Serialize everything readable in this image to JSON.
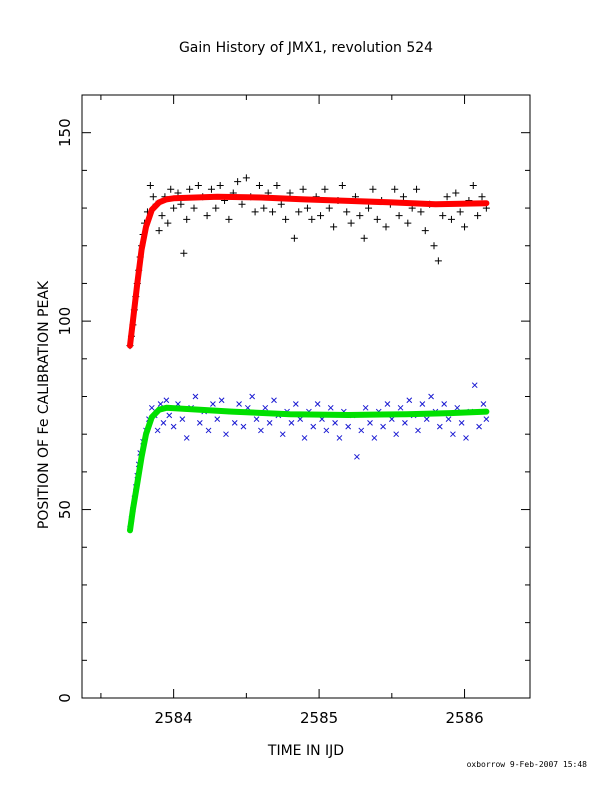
{
  "chart_data": {
    "type": "scatter",
    "title": "Gain History of JMX1, revolution 524",
    "xlabel": "TIME IN IJD",
    "ylabel": "POSITION OF Fe CALIBRATION PEAK",
    "xlim": [
      2583.37,
      2586.45
    ],
    "ylim": [
      0,
      160
    ],
    "xticks": [
      2584,
      2585,
      2586
    ],
    "yticks": [
      0,
      50,
      100,
      150
    ],
    "xtick_labels": [
      "2584",
      "2585",
      "2586"
    ],
    "ytick_labels": [
      "0",
      "50",
      "100",
      "150"
    ],
    "grid": false,
    "legend": "none",
    "series": [
      {
        "marker": "+",
        "color": "#000000",
        "points": [
          [
            2583.7,
            93.5
          ],
          [
            2583.71,
            96
          ],
          [
            2583.72,
            99
          ],
          [
            2583.73,
            103
          ],
          [
            2583.74,
            106.5
          ],
          [
            2583.75,
            110
          ],
          [
            2583.76,
            113.5
          ],
          [
            2583.77,
            117
          ],
          [
            2583.78,
            120
          ],
          [
            2583.79,
            123
          ],
          [
            2583.8,
            126
          ],
          [
            2583.82,
            129
          ],
          [
            2583.84,
            136
          ],
          [
            2583.86,
            133
          ],
          [
            2583.88,
            131
          ],
          [
            2583.9,
            124
          ],
          [
            2583.92,
            128
          ],
          [
            2583.94,
            133
          ],
          [
            2583.96,
            126
          ],
          [
            2583.98,
            135
          ],
          [
            2584.0,
            130
          ],
          [
            2584.03,
            134
          ],
          [
            2584.05,
            131
          ],
          [
            2584.07,
            118
          ],
          [
            2584.09,
            127
          ],
          [
            2584.11,
            135
          ],
          [
            2584.14,
            130
          ],
          [
            2584.17,
            136
          ],
          [
            2584.2,
            133
          ],
          [
            2584.23,
            128
          ],
          [
            2584.26,
            135
          ],
          [
            2584.29,
            130
          ],
          [
            2584.32,
            136
          ],
          [
            2584.35,
            132
          ],
          [
            2584.38,
            127
          ],
          [
            2584.41,
            134
          ],
          [
            2584.44,
            137
          ],
          [
            2584.47,
            131
          ],
          [
            2584.5,
            138
          ],
          [
            2584.53,
            133
          ],
          [
            2584.56,
            129
          ],
          [
            2584.59,
            136
          ],
          [
            2584.62,
            130
          ],
          [
            2584.65,
            134
          ],
          [
            2584.68,
            129
          ],
          [
            2584.71,
            136
          ],
          [
            2584.74,
            131
          ],
          [
            2584.77,
            127
          ],
          [
            2584.8,
            134
          ],
          [
            2584.83,
            122
          ],
          [
            2584.86,
            129
          ],
          [
            2584.89,
            135
          ],
          [
            2584.92,
            130
          ],
          [
            2584.95,
            127
          ],
          [
            2584.98,
            133
          ],
          [
            2585.01,
            128
          ],
          [
            2585.04,
            135
          ],
          [
            2585.07,
            130
          ],
          [
            2585.1,
            125
          ],
          [
            2585.13,
            132
          ],
          [
            2585.16,
            136
          ],
          [
            2585.19,
            129
          ],
          [
            2585.22,
            126
          ],
          [
            2585.25,
            133
          ],
          [
            2585.28,
            128
          ],
          [
            2585.31,
            122
          ],
          [
            2585.34,
            130
          ],
          [
            2585.37,
            135
          ],
          [
            2585.4,
            127
          ],
          [
            2585.43,
            132
          ],
          [
            2585.46,
            125
          ],
          [
            2585.49,
            131
          ],
          [
            2585.52,
            135
          ],
          [
            2585.55,
            128
          ],
          [
            2585.58,
            133
          ],
          [
            2585.61,
            126
          ],
          [
            2585.64,
            130
          ],
          [
            2585.67,
            135
          ],
          [
            2585.7,
            129
          ],
          [
            2585.73,
            124
          ],
          [
            2585.76,
            131
          ],
          [
            2585.79,
            120
          ],
          [
            2585.82,
            116
          ],
          [
            2585.85,
            128
          ],
          [
            2585.88,
            133
          ],
          [
            2585.91,
            127
          ],
          [
            2585.94,
            134
          ],
          [
            2585.97,
            129
          ],
          [
            2586.0,
            125
          ],
          [
            2586.03,
            132
          ],
          [
            2586.06,
            136
          ],
          [
            2586.09,
            128
          ],
          [
            2586.12,
            133
          ],
          [
            2586.15,
            130
          ]
        ]
      },
      {
        "marker": "x",
        "color": "#1a1ad2",
        "points": [
          [
            2583.7,
            45
          ],
          [
            2583.71,
            47.5
          ],
          [
            2583.72,
            50
          ],
          [
            2583.73,
            53
          ],
          [
            2583.74,
            56
          ],
          [
            2583.75,
            59
          ],
          [
            2583.76,
            62
          ],
          [
            2583.77,
            65
          ],
          [
            2583.79,
            68
          ],
          [
            2583.81,
            71
          ],
          [
            2583.83,
            74
          ],
          [
            2583.85,
            77
          ],
          [
            2583.87,
            75
          ],
          [
            2583.89,
            71
          ],
          [
            2583.91,
            78
          ],
          [
            2583.93,
            73
          ],
          [
            2583.95,
            79
          ],
          [
            2583.97,
            75
          ],
          [
            2584.0,
            72
          ],
          [
            2584.03,
            78
          ],
          [
            2584.06,
            74
          ],
          [
            2584.09,
            69
          ],
          [
            2584.12,
            77
          ],
          [
            2584.15,
            80
          ],
          [
            2584.18,
            73
          ],
          [
            2584.21,
            76
          ],
          [
            2584.24,
            71
          ],
          [
            2584.27,
            78
          ],
          [
            2584.3,
            74
          ],
          [
            2584.33,
            79
          ],
          [
            2584.36,
            70
          ],
          [
            2584.39,
            76
          ],
          [
            2584.42,
            73
          ],
          [
            2584.45,
            78
          ],
          [
            2584.48,
            72
          ],
          [
            2584.51,
            77
          ],
          [
            2584.54,
            80
          ],
          [
            2584.57,
            74
          ],
          [
            2584.6,
            71
          ],
          [
            2584.63,
            77
          ],
          [
            2584.66,
            73
          ],
          [
            2584.69,
            79
          ],
          [
            2584.72,
            75
          ],
          [
            2584.75,
            70
          ],
          [
            2584.78,
            76
          ],
          [
            2584.81,
            73
          ],
          [
            2584.84,
            78
          ],
          [
            2584.87,
            74
          ],
          [
            2584.9,
            69
          ],
          [
            2584.93,
            76
          ],
          [
            2584.96,
            72
          ],
          [
            2584.99,
            78
          ],
          [
            2585.02,
            74
          ],
          [
            2585.05,
            71
          ],
          [
            2585.08,
            77
          ],
          [
            2585.11,
            73
          ],
          [
            2585.14,
            69
          ],
          [
            2585.17,
            76
          ],
          [
            2585.2,
            72
          ],
          [
            2585.23,
            75
          ],
          [
            2585.26,
            64
          ],
          [
            2585.29,
            71
          ],
          [
            2585.32,
            77
          ],
          [
            2585.35,
            73
          ],
          [
            2585.38,
            69
          ],
          [
            2585.41,
            76
          ],
          [
            2585.44,
            72
          ],
          [
            2585.47,
            78
          ],
          [
            2585.5,
            74
          ],
          [
            2585.53,
            70
          ],
          [
            2585.56,
            77
          ],
          [
            2585.59,
            73
          ],
          [
            2585.62,
            79
          ],
          [
            2585.65,
            75
          ],
          [
            2585.68,
            71
          ],
          [
            2585.71,
            78
          ],
          [
            2585.74,
            74
          ],
          [
            2585.77,
            80
          ],
          [
            2585.8,
            76
          ],
          [
            2585.83,
            72
          ],
          [
            2585.86,
            78
          ],
          [
            2585.89,
            74
          ],
          [
            2585.92,
            70
          ],
          [
            2585.95,
            77
          ],
          [
            2585.98,
            73
          ],
          [
            2586.01,
            69
          ],
          [
            2586.04,
            76
          ],
          [
            2586.07,
            83
          ],
          [
            2586.1,
            72
          ],
          [
            2586.13,
            78
          ],
          [
            2586.15,
            74
          ]
        ]
      },
      {
        "marker": "line",
        "color": "#ff0000",
        "points": [
          [
            2583.7,
            93.5
          ],
          [
            2583.72,
            100
          ],
          [
            2583.75,
            110
          ],
          [
            2583.78,
            119
          ],
          [
            2583.81,
            125
          ],
          [
            2583.85,
            129.5
          ],
          [
            2583.9,
            131.5
          ],
          [
            2583.95,
            132.3
          ],
          [
            2584.0,
            132.6
          ],
          [
            2584.3,
            133.0
          ],
          [
            2584.6,
            132.8
          ],
          [
            2584.9,
            132.3
          ],
          [
            2585.2,
            131.9
          ],
          [
            2585.5,
            131.5
          ],
          [
            2585.8,
            131.0
          ],
          [
            2586.15,
            131.3
          ]
        ]
      },
      {
        "marker": "line",
        "color": "#00e000",
        "points": [
          [
            2583.7,
            44.5
          ],
          [
            2583.72,
            50
          ],
          [
            2583.75,
            57
          ],
          [
            2583.78,
            64
          ],
          [
            2583.81,
            70
          ],
          [
            2583.85,
            74.5
          ],
          [
            2583.9,
            76.5
          ],
          [
            2583.95,
            77.0
          ],
          [
            2584.05,
            76.8
          ],
          [
            2584.4,
            76.0
          ],
          [
            2584.8,
            75.3
          ],
          [
            2585.2,
            75.1
          ],
          [
            2585.6,
            75.3
          ],
          [
            2585.9,
            75.6
          ],
          [
            2586.15,
            76.0
          ]
        ]
      }
    ]
  },
  "footer": "oxborrow  9-Feb-2007 15:48"
}
